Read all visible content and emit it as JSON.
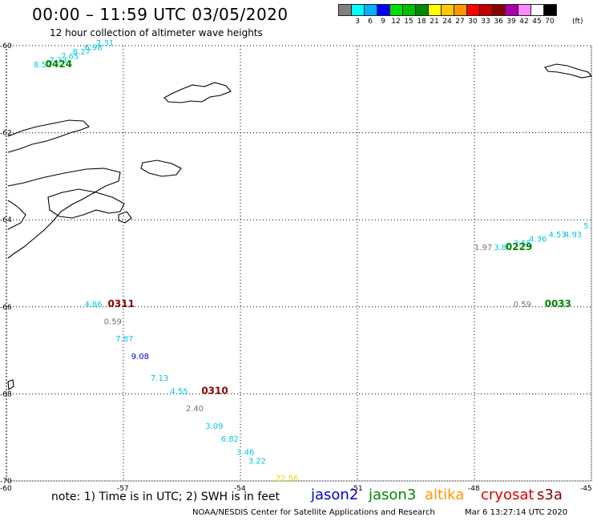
{
  "header": {
    "title": "00:00 – 11:59 UTC 03/05/2020",
    "subtitle": "12 hour collection of altimeter wave heights"
  },
  "color_scale": {
    "colors": [
      "#808080",
      "#00ffff",
      "#00b0ff",
      "#0000ff",
      "#00e000",
      "#00c000",
      "#008800",
      "#ffff00",
      "#ffc800",
      "#ff9600",
      "#ff0000",
      "#c00000",
      "#880000",
      "#aa00aa",
      "#ff88ff",
      "#ffffff",
      "#000000"
    ],
    "labels": [
      "",
      "3",
      "6",
      "9",
      "12",
      "15",
      "18",
      "21",
      "24",
      "27",
      "30",
      "33",
      "36",
      "39",
      "42",
      "45",
      "70"
    ],
    "unit": "(ft)"
  },
  "axes": {
    "lat_labels": [
      "-60",
      "-62",
      "-64",
      "-66",
      "-68",
      "-70"
    ],
    "lon_labels": [
      "-60",
      "-57",
      "-54",
      "-51",
      "-48",
      "-45"
    ]
  },
  "observations": [
    {
      "text": "7.31",
      "color": "#00c8e0",
      "lon": -57.7,
      "lat": -60.0
    },
    {
      "text": "6.98",
      "color": "#00c8e0",
      "lon": -58.0,
      "lat": -60.1
    },
    {
      "text": "8.27",
      "color": "#00c8e0",
      "lon": -58.3,
      "lat": -60.2
    },
    {
      "text": "7.65",
      "color": "#00c8e0",
      "lon": -58.6,
      "lat": -60.3
    },
    {
      "text": "7.33",
      "color": "#00c8e0",
      "lon": -58.9,
      "lat": -60.4
    },
    {
      "text": "8.57",
      "color": "#00c8e0",
      "lon": -59.3,
      "lat": -60.5
    },
    {
      "text": "4.86",
      "color": "#00c8e0",
      "lon": -58.0,
      "lat": -66.0
    },
    {
      "text": "0.59",
      "color": "#707070",
      "lon": -57.5,
      "lat": -66.4
    },
    {
      "text": "7.87",
      "color": "#00c8e0",
      "lon": -57.2,
      "lat": -66.8
    },
    {
      "text": "9.08",
      "color": "#0000e0",
      "lon": -56.8,
      "lat": -67.2
    },
    {
      "text": "7.13",
      "color": "#00c8e0",
      "lon": -56.3,
      "lat": -67.7
    },
    {
      "text": "4.55",
      "color": "#00c8e0",
      "lon": -55.8,
      "lat": -68.0
    },
    {
      "text": "2.40",
      "color": "#707070",
      "lon": -55.4,
      "lat": -68.4
    },
    {
      "text": "3.09",
      "color": "#00c8e0",
      "lon": -54.9,
      "lat": -68.8
    },
    {
      "text": "6.82",
      "color": "#00c8e0",
      "lon": -54.5,
      "lat": -69.1
    },
    {
      "text": "3.46",
      "color": "#00c8e0",
      "lon": -54.1,
      "lat": -69.4
    },
    {
      "text": "3.22",
      "color": "#00c8e0",
      "lon": -53.8,
      "lat": -69.6
    },
    {
      "text": "22.56",
      "color": "#f0d000",
      "lon": -53.1,
      "lat": -70.0
    },
    {
      "text": "1.97",
      "color": "#707070",
      "lon": -48.0,
      "lat": -64.7
    },
    {
      "text": "3.80",
      "color": "#00c8e0",
      "lon": -47.5,
      "lat": -64.7
    },
    {
      "text": "3.55",
      "color": "#00c8e0",
      "lon": -47.0,
      "lat": -64.6
    },
    {
      "text": "4.36",
      "color": "#00c8e0",
      "lon": -46.6,
      "lat": -64.5
    },
    {
      "text": "4.53",
      "color": "#00c8e0",
      "lon": -46.1,
      "lat": -64.4
    },
    {
      "text": "4.93",
      "color": "#00c8e0",
      "lon": -45.7,
      "lat": -64.4
    },
    {
      "text": "5.",
      "color": "#00c8e0",
      "lon": -45.2,
      "lat": -64.2
    },
    {
      "text": "0.59",
      "color": "#707070",
      "lon": -47.0,
      "lat": -66.0
    }
  ],
  "pass_times": [
    {
      "text": "0424",
      "color": "#008800",
      "lon": -59.0,
      "lat": -60.5
    },
    {
      "text": "0311",
      "color": "#880000",
      "lon": -57.4,
      "lat": -66.0
    },
    {
      "text": "0310",
      "color": "#880000",
      "lon": -55.0,
      "lat": -68.0
    },
    {
      "text": "0229",
      "color": "#008800",
      "lon": -47.2,
      "lat": -64.7
    },
    {
      "text": "0033",
      "color": "#008800",
      "lon": -46.2,
      "lat": -66.0
    }
  ],
  "legend": {
    "note": "note: 1) Time is in UTC; 2) SWH is in feet",
    "satellites": [
      {
        "name": "jason2",
        "color": "#0000dd"
      },
      {
        "name": "jason3",
        "color": "#008800"
      },
      {
        "name": "altika",
        "color": "#ff9600"
      },
      {
        "name": "cryosat",
        "color": "#dd0000"
      },
      {
        "name": "s3a",
        "color": "#880000"
      }
    ]
  },
  "footer": {
    "credit": "NOAA/NESDIS Center for Satellite Applications and Research",
    "timestamp": "Mar  6 13:27:14 UTC 2020"
  }
}
